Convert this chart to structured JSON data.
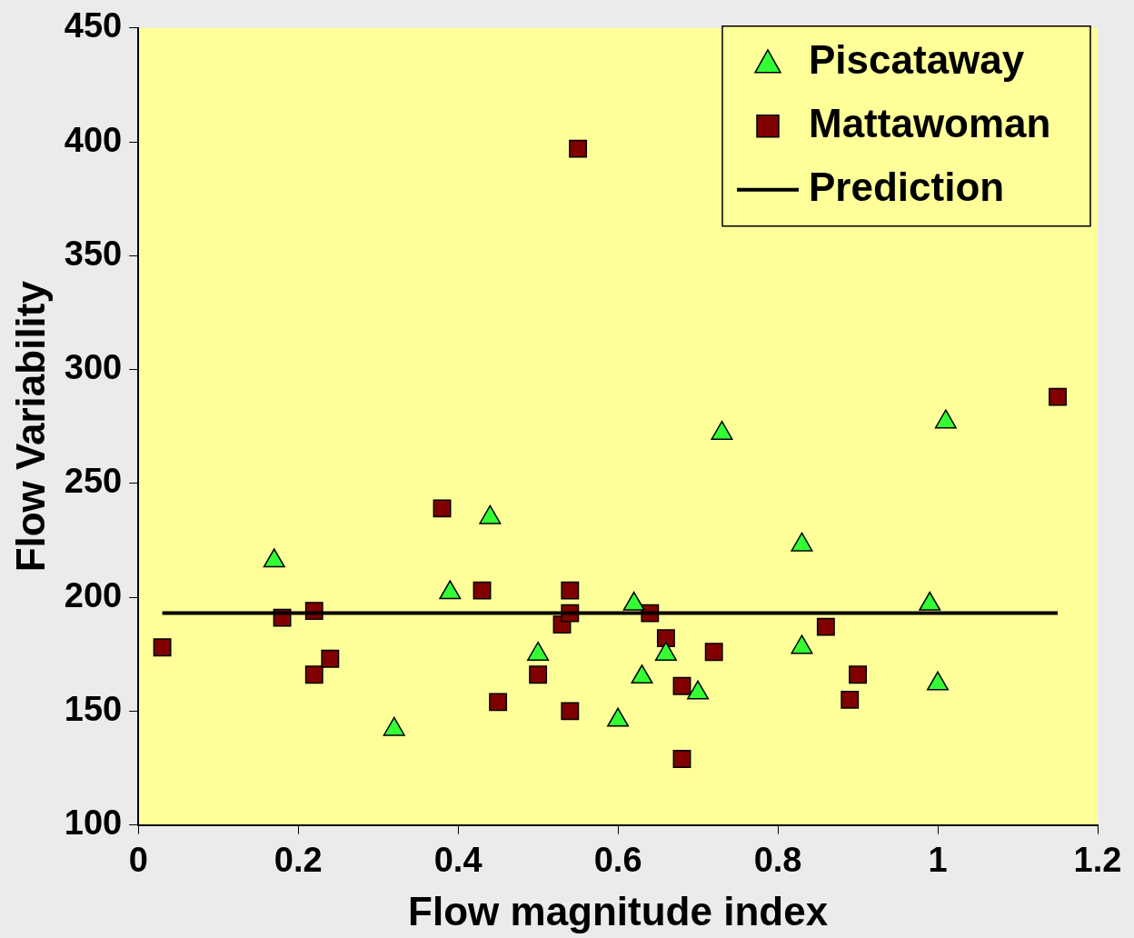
{
  "chart_data": {
    "type": "scatter",
    "xlabel": "Flow magnitude index",
    "ylabel": "Flow Variability",
    "xlim": [
      0,
      1.2
    ],
    "xticks": [
      0,
      0.2,
      0.4,
      0.6,
      0.8,
      1,
      1.2
    ],
    "ylim": [
      100,
      450
    ],
    "yticks": [
      100,
      150,
      200,
      250,
      300,
      350,
      400,
      450
    ],
    "grid": false,
    "legend": "top right",
    "series": [
      {
        "name": "Piscataway",
        "marker": "triangle",
        "color": "#33ff33",
        "x": [
          0.17,
          0.32,
          0.39,
          0.44,
          0.5,
          0.6,
          0.62,
          0.63,
          0.66,
          0.7,
          0.73,
          0.83,
          0.83,
          0.99,
          1.0,
          1.01
        ],
        "values": [
          216,
          142,
          202,
          235,
          175,
          146,
          197,
          165,
          175,
          158,
          272,
          178,
          223,
          197,
          162,
          277
        ]
      },
      {
        "name": "Mattawoman",
        "marker": "square",
        "color": "#800000",
        "x": [
          0.03,
          0.18,
          0.22,
          0.22,
          0.24,
          0.38,
          0.43,
          0.45,
          0.5,
          0.53,
          0.54,
          0.54,
          0.54,
          0.55,
          0.64,
          0.66,
          0.68,
          0.68,
          0.72,
          0.86,
          0.89,
          0.9,
          1.15
        ],
        "values": [
          178,
          191,
          194,
          166,
          173,
          239,
          203,
          154,
          166,
          188,
          203,
          193,
          150,
          397,
          193,
          182,
          161,
          129,
          176,
          187,
          155,
          166,
          288
        ]
      },
      {
        "name": "Prediction",
        "type": "line",
        "marker": "none",
        "color": "#000000",
        "x": [
          0.03,
          1.15
        ],
        "values": [
          193,
          193
        ]
      }
    ]
  }
}
